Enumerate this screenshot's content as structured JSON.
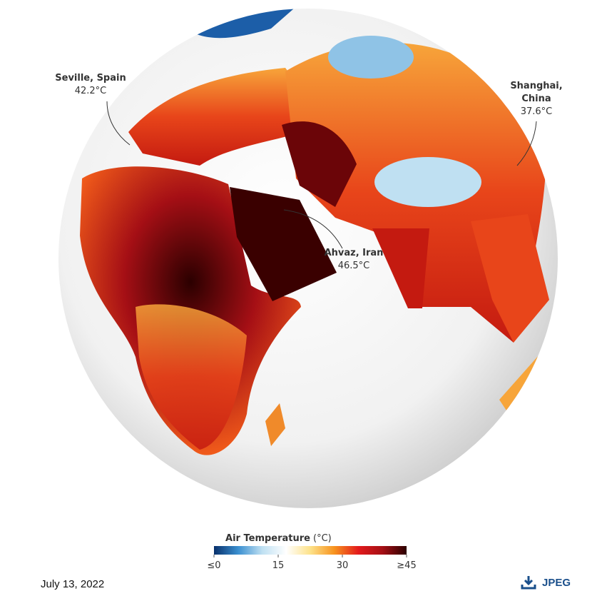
{
  "map": {
    "annotations": [
      {
        "name_lines": [
          "Seville, Spain"
        ],
        "value": "42.2°C"
      },
      {
        "name_lines": [
          "Ahvaz, Iran"
        ],
        "value": "46.5°C"
      },
      {
        "name_lines": [
          "Shanghai,",
          "China"
        ],
        "value": "37.6°C"
      }
    ],
    "colorbar": {
      "title": "Air Temperature",
      "unit": "(°C)",
      "range": [
        0,
        45
      ],
      "ticks": [
        {
          "value": 0,
          "label": "≤0"
        },
        15,
        30,
        {
          "value": 45,
          "label": "≥45"
        }
      ],
      "colors": [
        "#08306b",
        "#3a8fd0",
        "#bfe0f2",
        "#ffffff",
        "#fde28a",
        "#f7931e",
        "#e31a1c",
        "#a50f15",
        "#2b0000"
      ]
    }
  },
  "footer": {
    "date": "July 13, 2022",
    "download": "JPEG"
  }
}
